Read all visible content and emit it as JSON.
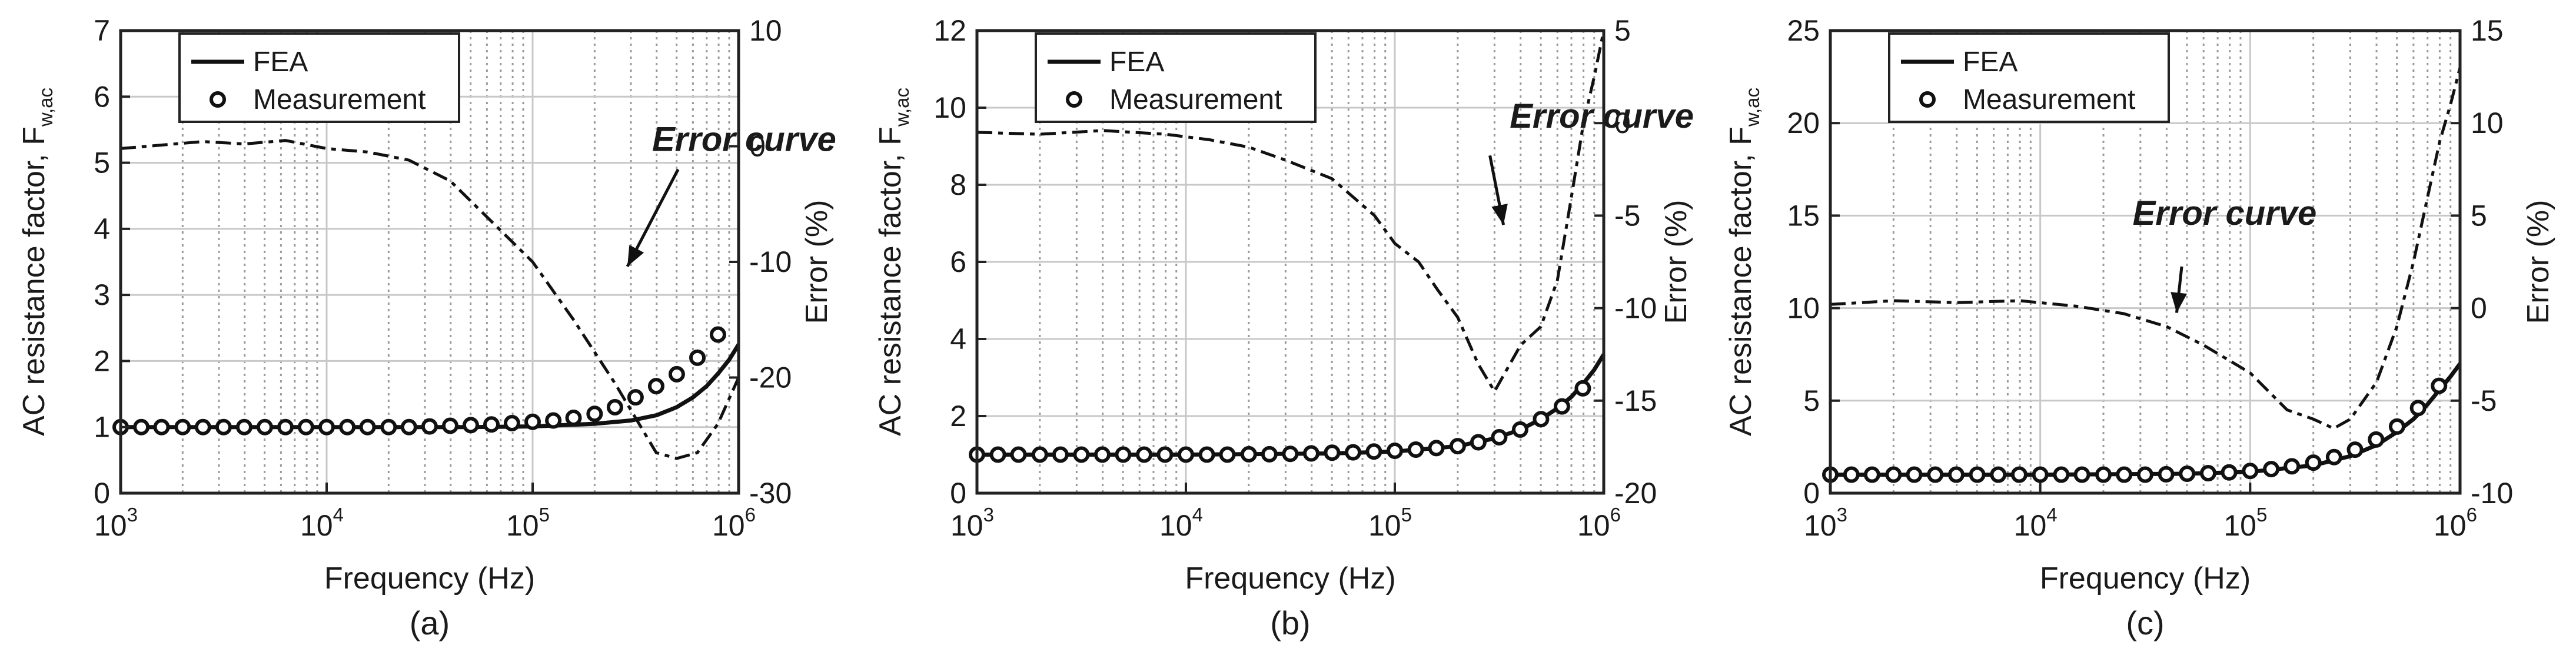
{
  "chart_data": [
    {
      "type": "line",
      "caption": "(a)",
      "xlabel": "Frequency (Hz)",
      "ylabel": "AC resistance factor, F",
      "ylabel_sub": "w,ac",
      "ylabel_right": "Error (%)",
      "xscale": "log",
      "xlim": [
        1000,
        1000000
      ],
      "x_tick_base": "10",
      "x_tick_exponents": [
        "3",
        "4",
        "5",
        "6"
      ],
      "ylim": [
        0,
        7
      ],
      "y_ticks": [
        "0",
        "1",
        "2",
        "3",
        "4",
        "5",
        "6",
        "7"
      ],
      "y2lim": [
        -30,
        10
      ],
      "y2_ticks": [
        "-30",
        "-20",
        "-10",
        "0",
        "10"
      ],
      "grid": true,
      "legend": [
        "FEA",
        "Measurement"
      ],
      "legend_position": "top-left",
      "annotation": "Error curve",
      "fea": {
        "x": [
          1000,
          10000,
          50000,
          100000,
          200000,
          300000,
          400000,
          500000,
          600000,
          700000,
          800000,
          900000,
          1000000
        ],
        "y": [
          1.0,
          1.0,
          1.0,
          1.01,
          1.05,
          1.1,
          1.18,
          1.3,
          1.45,
          1.62,
          1.82,
          2.02,
          2.25
        ]
      },
      "measurement": {
        "x": [
          1000,
          1260,
          1580,
          2000,
          2510,
          3160,
          3980,
          5010,
          6310,
          7940,
          10000,
          12600,
          15800,
          20000,
          25100,
          31600,
          39800,
          50100,
          63100,
          79400,
          100000,
          126000,
          158000,
          200000,
          251000,
          316000,
          398000,
          501000,
          631000,
          794000
        ],
        "y": [
          1.0,
          1.0,
          1.0,
          1.0,
          1.0,
          1.0,
          1.0,
          1.0,
          1.0,
          1.0,
          1.0,
          1.0,
          1.0,
          1.0,
          1.0,
          1.01,
          1.02,
          1.03,
          1.04,
          1.06,
          1.08,
          1.1,
          1.14,
          1.2,
          1.3,
          1.45,
          1.62,
          1.8,
          2.05,
          2.4
        ]
      },
      "error": {
        "x": [
          1000,
          1580,
          2510,
          3980,
          6310,
          10000,
          15800,
          25100,
          39800,
          63100,
          100000,
          158000,
          251000,
          398000,
          501000,
          631000,
          794000,
          1000000
        ],
        "y": [
          -0.2,
          0.1,
          0.4,
          0.2,
          0.5,
          -0.2,
          -0.5,
          -1.2,
          -3.0,
          -6.5,
          -10.0,
          -15.0,
          -20.5,
          -26.5,
          -27.0,
          -26.5,
          -24.0,
          -20.0
        ]
      }
    },
    {
      "type": "line",
      "caption": "(b)",
      "xlabel": "Frequency (Hz)",
      "ylabel": "AC resistance factor, F",
      "ylabel_sub": "w,ac",
      "ylabel_right": "Error (%)",
      "xscale": "log",
      "xlim": [
        1000,
        1000000
      ],
      "x_tick_base": "10",
      "x_tick_exponents": [
        "3",
        "4",
        "5",
        "6"
      ],
      "ylim": [
        0,
        12
      ],
      "y_ticks": [
        "0",
        "2",
        "4",
        "6",
        "8",
        "10",
        "12"
      ],
      "y2lim": [
        -20,
        5
      ],
      "y2_ticks": [
        "-20",
        "-15",
        "-10",
        "-5",
        "0",
        "5"
      ],
      "grid": true,
      "legend": [
        "FEA",
        "Measurement"
      ],
      "legend_position": "top-left",
      "annotation": "Error curve",
      "fea": {
        "x": [
          1000,
          10000,
          50000,
          100000,
          200000,
          300000,
          400000,
          500000,
          600000,
          700000,
          800000,
          900000,
          1000000
        ],
        "y": [
          1.0,
          1.0,
          1.03,
          1.08,
          1.22,
          1.42,
          1.65,
          1.92,
          2.2,
          2.5,
          2.85,
          3.2,
          3.6
        ]
      },
      "measurement": {
        "x": [
          1000,
          1260,
          1580,
          2000,
          2510,
          3160,
          3980,
          5010,
          6310,
          7940,
          10000,
          12600,
          15800,
          20000,
          25100,
          31600,
          39800,
          50100,
          63100,
          79400,
          100000,
          126000,
          158000,
          200000,
          251000,
          316000,
          398000,
          501000,
          631000,
          794000
        ],
        "y": [
          1.0,
          1.0,
          1.0,
          1.0,
          1.0,
          1.0,
          1.0,
          1.0,
          1.0,
          1.0,
          1.0,
          1.0,
          1.0,
          1.01,
          1.01,
          1.02,
          1.03,
          1.05,
          1.06,
          1.08,
          1.1,
          1.13,
          1.17,
          1.22,
          1.32,
          1.45,
          1.65,
          1.92,
          2.25,
          2.72
        ]
      },
      "error": {
        "x": [
          1000,
          2000,
          4000,
          8000,
          13000,
          20000,
          30000,
          50000,
          80000,
          100000,
          130000,
          160000,
          200000,
          250000,
          300000,
          400000,
          500000,
          600000,
          700000,
          800000,
          900000,
          1000000
        ],
        "y": [
          -0.5,
          -0.6,
          -0.4,
          -0.6,
          -0.9,
          -1.3,
          -2.0,
          -3.0,
          -5.0,
          -6.5,
          -7.5,
          -9.0,
          -10.5,
          -13.0,
          -14.5,
          -12.0,
          -11.0,
          -8.5,
          -4.0,
          0.0,
          2.5,
          5.0
        ]
      }
    },
    {
      "type": "line",
      "caption": "(c)",
      "xlabel": "Frequency (Hz)",
      "ylabel": "AC resistance factor, F",
      "ylabel_sub": "w,ac",
      "ylabel_right": "Error (%)",
      "xscale": "log",
      "xlim": [
        1000,
        1000000
      ],
      "x_tick_base": "10",
      "x_tick_exponents": [
        "3",
        "4",
        "5",
        "6"
      ],
      "ylim": [
        0,
        25
      ],
      "y_ticks": [
        "0",
        "5",
        "10",
        "15",
        "20",
        "25"
      ],
      "y2lim": [
        -10,
        15
      ],
      "y2_ticks": [
        "-10",
        "-5",
        "0",
        "5",
        "10",
        "15"
      ],
      "grid": true,
      "legend": [
        "FEA",
        "Measurement"
      ],
      "legend_position": "top-left",
      "annotation": "Error curve",
      "fea": {
        "x": [
          1000,
          10000,
          50000,
          100000,
          200000,
          300000,
          400000,
          500000,
          600000,
          700000,
          800000,
          900000,
          1000000
        ],
        "y": [
          1.0,
          1.0,
          1.05,
          1.15,
          1.5,
          2.0,
          2.6,
          3.3,
          4.0,
          4.8,
          5.6,
          6.3,
          7.0
        ]
      },
      "measurement": {
        "x": [
          1000,
          1260,
          1580,
          2000,
          2510,
          3160,
          3980,
          5010,
          6310,
          7940,
          10000,
          12600,
          15800,
          20000,
          25100,
          31600,
          39800,
          50100,
          63100,
          79400,
          100000,
          126000,
          158000,
          200000,
          251000,
          316000,
          398000,
          501000,
          631000,
          794000
        ],
        "y": [
          1.0,
          1.0,
          1.0,
          1.0,
          1.0,
          1.0,
          1.0,
          1.0,
          1.0,
          1.0,
          1.0,
          1.0,
          1.0,
          1.0,
          1.0,
          1.0,
          1.02,
          1.05,
          1.08,
          1.12,
          1.2,
          1.3,
          1.45,
          1.65,
          1.95,
          2.35,
          2.9,
          3.6,
          4.6,
          5.8
        ]
      },
      "error": {
        "x": [
          1000,
          2000,
          4000,
          8000,
          15000,
          25000,
          40000,
          60000,
          100000,
          150000,
          200000,
          250000,
          300000,
          400000,
          500000,
          600000,
          700000,
          800000,
          900000,
          1000000
        ],
        "y": [
          0.2,
          0.4,
          0.3,
          0.4,
          0.1,
          -0.3,
          -1.0,
          -2.0,
          -3.5,
          -5.5,
          -6.0,
          -6.5,
          -6.0,
          -4.0,
          -1.0,
          2.5,
          6.0,
          9.0,
          11.0,
          13.0
        ]
      }
    }
  ]
}
